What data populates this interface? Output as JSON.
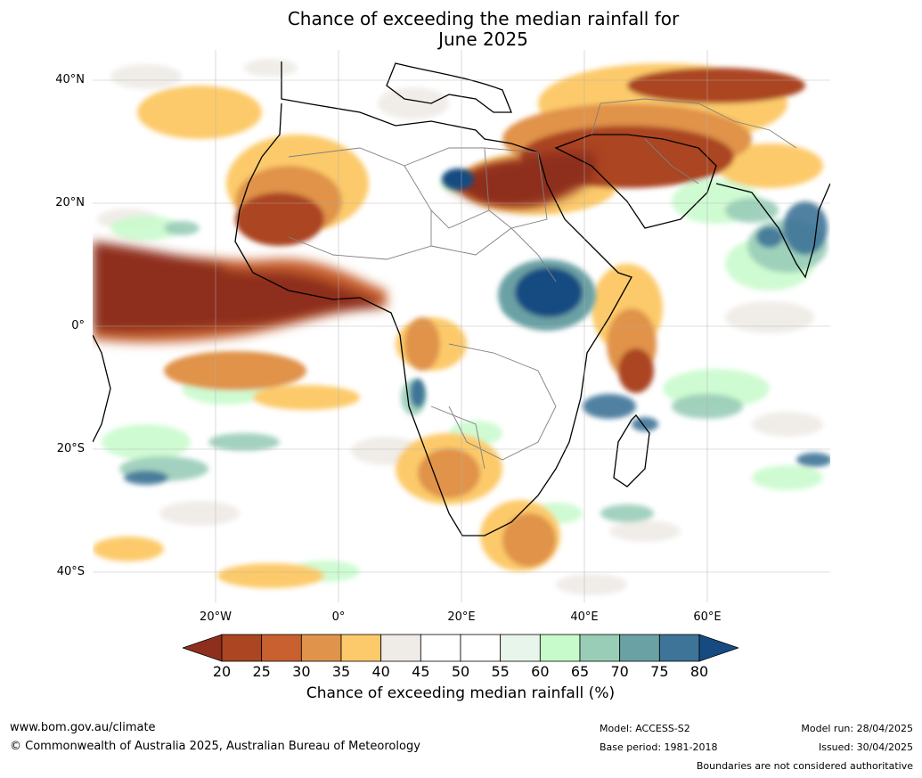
{
  "title_line1": "Chance of exceeding the median rainfall for",
  "title_line2": "June 2025",
  "lat_labels": [
    "40°N",
    "20°N",
    "0°",
    "20°S",
    "40°S"
  ],
  "lon_labels": [
    "20°W",
    "0°",
    "20°E",
    "40°E",
    "60°E"
  ],
  "colorbar": {
    "label": "Chance of exceeding median rainfall (%)",
    "ticks": [
      "20",
      "25",
      "30",
      "35",
      "40",
      "45",
      "50",
      "55",
      "60",
      "65",
      "70",
      "75",
      "80"
    ],
    "colors": [
      "#8e2f1e",
      "#ab4522",
      "#c8612f",
      "#e0934a",
      "#fcca6a",
      "#efebe7",
      "#ffffff",
      "#ffffff",
      "#e8f5eb",
      "#c7fbcb",
      "#99cdb8",
      "#6aa1a4",
      "#3e7497",
      "#164b82"
    ]
  },
  "footer": {
    "website": "www.bom.gov.au/climate",
    "copyright": "© Commonwealth of Australia 2025, Australian Bureau of Meteorology",
    "model": "Model: ACCESS-S2",
    "base_period": "Base period: 1981-2018",
    "model_run": "Model run: 28/04/2025",
    "issued": "Issued: 30/04/2025",
    "disclaimer": "Boundaries are not considered authoritative"
  }
}
